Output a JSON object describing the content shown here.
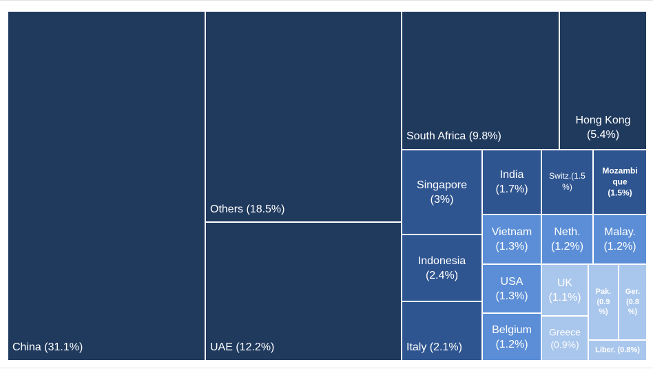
{
  "chart_data": {
    "type": "treemap",
    "unit": "%",
    "items": [
      {
        "name": "China",
        "label": "China (31.1%)",
        "value": 31.1,
        "color": "#203a5e"
      },
      {
        "name": "Others",
        "label": "Others (18.5%)",
        "value": 18.5,
        "color": "#203a5e"
      },
      {
        "name": "UAE",
        "label": "UAE (12.2%)",
        "value": 12.2,
        "color": "#203a5e"
      },
      {
        "name": "South Africa",
        "label": "South Africa (9.8%)",
        "value": 9.8,
        "color": "#203a5e"
      },
      {
        "name": "Hong Kong",
        "label": "Hong Kong (5.4%)",
        "value": 5.4,
        "color": "#203a5e"
      },
      {
        "name": "Singapore",
        "label": "Singapore (3%)",
        "value": 3,
        "color": "#2f5590"
      },
      {
        "name": "Indonesia",
        "label": "Indonesia (2.4%)",
        "value": 2.4,
        "color": "#2f5590"
      },
      {
        "name": "Italy",
        "label": "Italy (2.1%)",
        "value": 2.1,
        "color": "#2f5590"
      },
      {
        "name": "India",
        "label": "India (1.7%)",
        "value": 1.7,
        "color": "#2f5590"
      },
      {
        "name": "Switz.",
        "label": "Switz.(1.5%)",
        "value": 1.5,
        "color": "#2f5590"
      },
      {
        "name": "Mozambique",
        "label": "Mozambique (1.5%)",
        "value": 1.5,
        "color": "#2f5590"
      },
      {
        "name": "Vietnam",
        "label": "Vietnam (1.3%)",
        "value": 1.3,
        "color": "#5b8ed6"
      },
      {
        "name": "Neth.",
        "label": "Neth. (1.2%)",
        "value": 1.2,
        "color": "#5b8ed6"
      },
      {
        "name": "Malay.",
        "label": "Malay. (1.2%)",
        "value": 1.2,
        "color": "#5b8ed6"
      },
      {
        "name": "USA",
        "label": "USA (1.3%)",
        "value": 1.3,
        "color": "#5b8ed6"
      },
      {
        "name": "Belgium",
        "label": "Belgium (1.2%)",
        "value": 1.2,
        "color": "#5b8ed6"
      },
      {
        "name": "UK",
        "label": "UK (1.1%)",
        "value": 1.1,
        "color": "#a9c6ec"
      },
      {
        "name": "Greece",
        "label": "Greece (0.9%)",
        "value": 0.9,
        "color": "#a9c6ec"
      },
      {
        "name": "Pak.",
        "label": "Pak. (0.9%)",
        "value": 0.9,
        "color": "#a9c6ec"
      },
      {
        "name": "Ger.",
        "label": "Ger. (0.8%)",
        "value": 0.8,
        "color": "#a9c6ec"
      },
      {
        "name": "Liber.",
        "label": "Liber. (0.8%)",
        "value": 0.8,
        "color": "#a9c6ec"
      }
    ]
  }
}
